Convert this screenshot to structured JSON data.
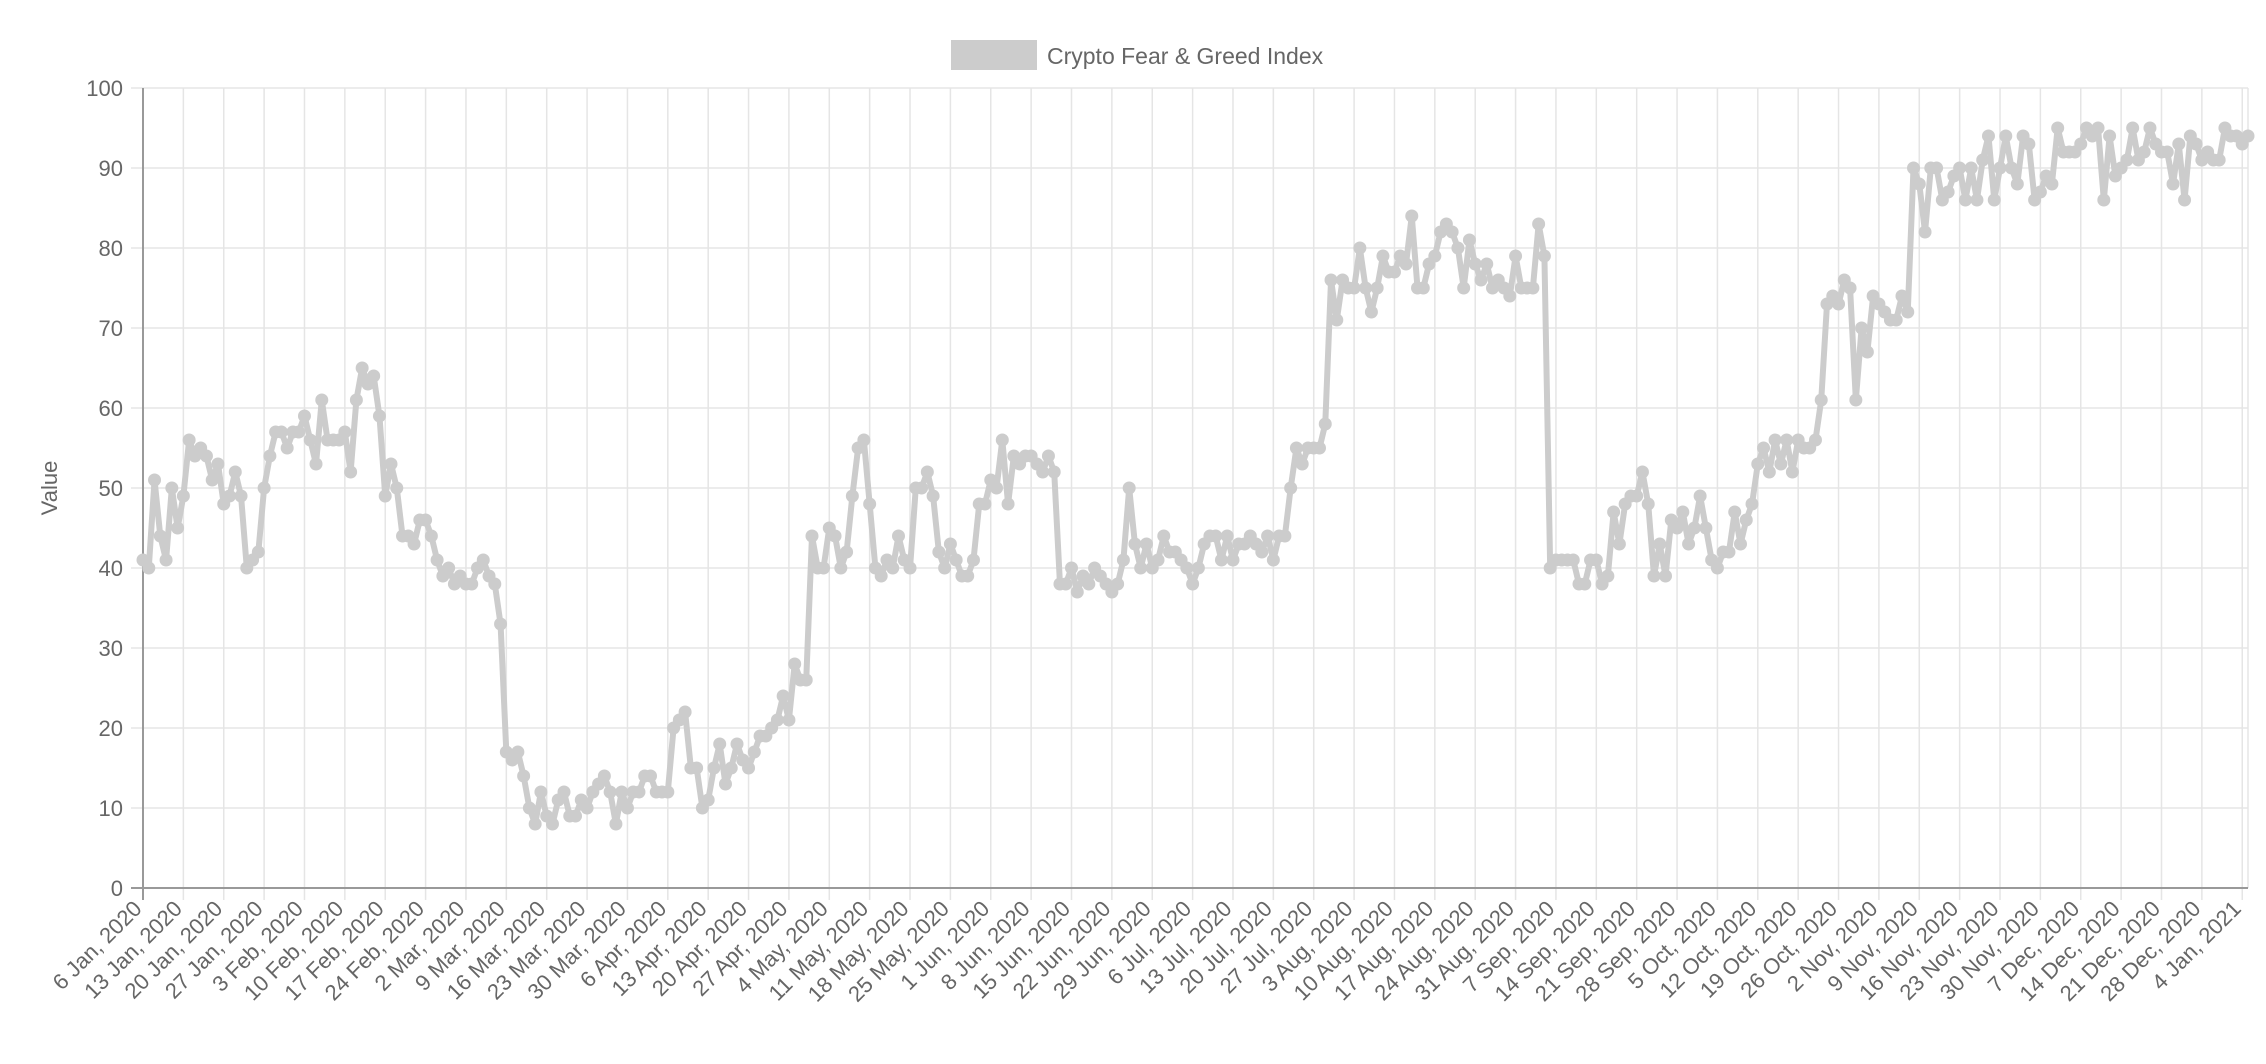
{
  "chart_data": {
    "type": "line",
    "legend": {
      "label": "Crypto Fear & Greed Index",
      "position": "top"
    },
    "ylabel": "Value",
    "xlabel": "",
    "ylim": [
      0,
      100
    ],
    "yticks": [
      "0",
      "10",
      "20",
      "30",
      "40",
      "50",
      "60",
      "70",
      "80",
      "90",
      "100"
    ],
    "grid": true,
    "colors": {
      "series": "#cccccc",
      "grid": "#e5e5e5",
      "axis": "#999999",
      "text": "#666666"
    },
    "x_ticks": [
      "6 Jan, 2020",
      "13 Jan, 2020",
      "20 Jan, 2020",
      "27 Jan, 2020",
      "3 Feb, 2020",
      "10 Feb, 2020",
      "17 Feb, 2020",
      "24 Feb, 2020",
      "2 Mar, 2020",
      "9 Mar, 2020",
      "16 Mar, 2020",
      "23 Mar, 2020",
      "30 Mar, 2020",
      "6 Apr, 2020",
      "13 Apr, 2020",
      "20 Apr, 2020",
      "27 Apr, 2020",
      "4 May, 2020",
      "11 May, 2020",
      "18 May, 2020",
      "25 May, 2020",
      "1 Jun, 2020",
      "8 Jun, 2020",
      "15 Jun, 2020",
      "22 Jun, 2020",
      "29 Jun, 2020",
      "6 Jul, 2020",
      "13 Jul, 2020",
      "20 Jul, 2020",
      "27 Jul, 2020",
      "3 Aug, 2020",
      "10 Aug, 2020",
      "17 Aug, 2020",
      "24 Aug, 2020",
      "31 Aug, 2020",
      "7 Sep, 2020",
      "14 Sep, 2020",
      "21 Sep, 2020",
      "28 Sep, 2020",
      "5 Oct, 2020",
      "12 Oct, 2020",
      "19 Oct, 2020",
      "26 Oct, 2020",
      "2 Nov, 2020",
      "9 Nov, 2020",
      "16 Nov, 2020",
      "23 Nov, 2020",
      "30 Nov, 2020",
      "7 Dec, 2020",
      "14 Dec, 2020",
      "21 Dec, 2020",
      "28 Dec, 2020",
      "4 Jan, 2021"
    ],
    "x_start": "6 Jan, 2020",
    "x_end": "5 Jan, 2021",
    "series": [
      {
        "name": "Crypto Fear & Greed Index",
        "values": [
          41,
          40,
          51,
          44,
          41,
          50,
          45,
          49,
          56,
          54,
          55,
          54,
          51,
          53,
          48,
          49,
          52,
          49,
          40,
          41,
          42,
          50,
          54,
          57,
          57,
          55,
          57,
          57,
          59,
          56,
          53,
          61,
          56,
          56,
          56,
          57,
          52,
          61,
          65,
          63,
          64,
          59,
          49,
          53,
          50,
          44,
          44,
          43,
          46,
          46,
          44,
          41,
          39,
          40,
          38,
          39,
          38,
          38,
          40,
          41,
          39,
          38,
          33,
          17,
          16,
          17,
          14,
          10,
          8,
          12,
          9,
          8,
          11,
          12,
          9,
          9,
          11,
          10,
          12,
          13,
          14,
          12,
          8,
          12,
          10,
          12,
          12,
          14,
          14,
          12,
          12,
          12,
          20,
          21,
          22,
          15,
          15,
          10,
          11,
          15,
          18,
          13,
          15,
          18,
          16,
          15,
          17,
          19,
          19,
          20,
          21,
          24,
          21,
          28,
          26,
          26,
          44,
          40,
          40,
          45,
          44,
          40,
          42,
          49,
          55,
          56,
          48,
          40,
          39,
          41,
          40,
          44,
          41,
          40,
          50,
          50,
          52,
          49,
          42,
          40,
          43,
          41,
          39,
          39,
          41,
          48,
          48,
          51,
          50,
          56,
          48,
          54,
          53,
          54,
          54,
          53,
          52,
          54,
          52,
          38,
          38,
          40,
          37,
          39,
          38,
          40,
          39,
          38,
          37,
          38,
          41,
          50,
          43,
          40,
          43,
          40,
          41,
          44,
          42,
          42,
          41,
          40,
          38,
          40,
          43,
          44,
          44,
          41,
          44,
          41,
          43,
          43,
          44,
          43,
          42,
          44,
          41,
          44,
          44,
          50,
          55,
          53,
          55,
          55,
          55,
          58,
          76,
          71,
          76,
          75,
          75,
          80,
          75,
          72,
          75,
          79,
          77,
          77,
          79,
          78,
          84,
          75,
          75,
          78,
          79,
          82,
          83,
          82,
          80,
          75,
          81,
          78,
          76,
          78,
          75,
          76,
          75,
          74,
          79,
          75,
          75,
          75,
          83,
          79,
          40,
          41,
          41,
          41,
          41,
          38,
          38,
          41,
          41,
          38,
          39,
          47,
          43,
          48,
          49,
          49,
          52,
          48,
          39,
          43,
          39,
          46,
          45,
          47,
          43,
          45,
          49,
          45,
          41,
          40,
          42,
          42,
          47,
          43,
          46,
          48,
          53,
          55,
          52,
          56,
          53,
          56,
          52,
          56,
          55,
          55,
          56,
          61,
          73,
          74,
          73,
          76,
          75,
          61,
          70,
          67,
          74,
          73,
          72,
          71,
          71,
          74,
          72,
          90,
          88,
          82,
          90,
          90,
          86,
          87,
          89,
          90,
          86,
          90,
          86,
          91,
          94,
          86,
          90,
          94,
          90,
          88,
          94,
          93,
          86,
          87,
          89,
          88,
          95,
          92,
          92,
          92,
          93,
          95,
          94,
          95,
          86,
          94,
          89,
          90,
          91,
          95,
          91,
          92,
          95,
          93,
          92,
          92,
          88,
          93,
          86,
          94,
          93,
          91,
          92,
          91,
          91,
          95,
          94,
          94,
          93,
          94
        ]
      }
    ]
  }
}
